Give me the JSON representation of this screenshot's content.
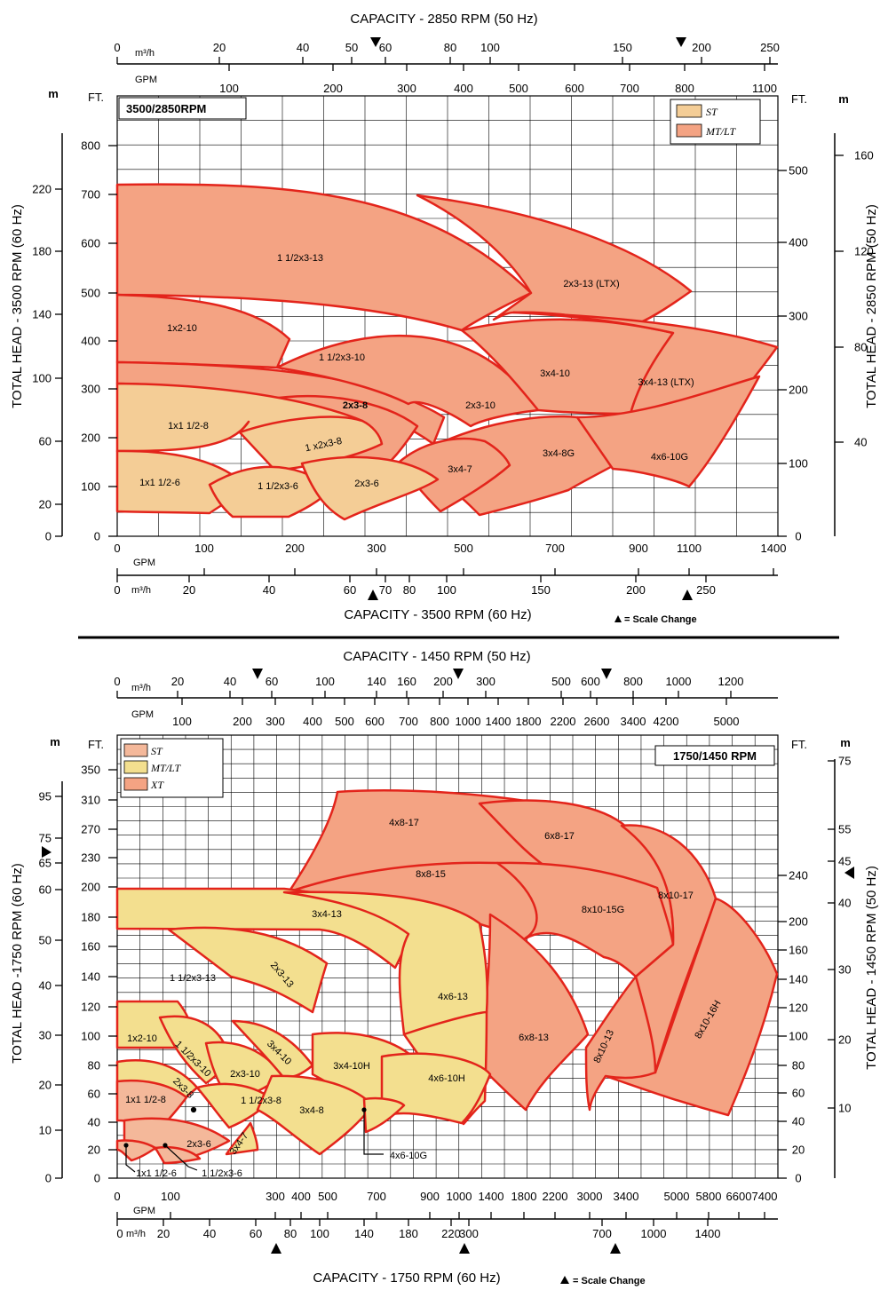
{
  "chart_data": [
    {
      "type": "area",
      "speed_label": "3500/2850RPM",
      "top_axis_title": "CAPACITY - 2850 RPM (50 Hz)",
      "top_axis_unit_m3h": "m³/h",
      "top_axis_unit_gpm": "GPM",
      "top_ticks_m3h": [
        "0",
        "20",
        "40",
        "50",
        "60",
        "80",
        "100",
        "150",
        "200",
        "250"
      ],
      "top_ticks_gpm": [
        "100",
        "200",
        "300",
        "400",
        "500",
        "600",
        "700",
        "800",
        "1100"
      ],
      "bottom_axis_title": "CAPACITY - 3500 RPM (60 Hz)",
      "bottom_ticks_gpm": [
        "0",
        "100",
        "200",
        "300",
        "500",
        "700",
        "900",
        "1100",
        "1400"
      ],
      "bottom_ticks_m3h": [
        "0",
        "20",
        "40",
        "60",
        "70",
        "80",
        "100",
        "150",
        "200",
        "250"
      ],
      "bottom_unit_gpm": "GPM",
      "bottom_unit_m3h": "m³/h",
      "left_axis_title": "TOTAL HEAD - 3500 RPM (60 Hz)",
      "left_units": {
        "m": "m",
        "ft": "FT."
      },
      "left_ticks_ft": [
        "0",
        "100",
        "200",
        "300",
        "400",
        "500",
        "600",
        "700",
        "800"
      ],
      "left_ticks_m": [
        "0",
        "20",
        "60",
        "100",
        "140",
        "180",
        "220"
      ],
      "right_axis_title": "TOTAL HEAD - 2850 RPM (50 Hz)",
      "right_units": {
        "ft": "FT.",
        "m": "m"
      },
      "right_ticks_ft": [
        "0",
        "100",
        "200",
        "300",
        "400",
        "500"
      ],
      "right_ticks_m": [
        "40",
        "80",
        "120",
        "160"
      ],
      "scale_change_note": "= Scale Change",
      "legend": [
        {
          "label": "ST",
          "color": "#f4cd96"
        },
        {
          "label": "MT/LT",
          "color": "#f4a383"
        }
      ],
      "regions": [
        {
          "label": "1 1/2x3-13",
          "group": "MT/LT",
          "gpm_min": 0,
          "gpm_max": 470,
          "head_ft_max": 720
        },
        {
          "label": "2x3-13 (LTX)",
          "group": "MT/LT",
          "gpm_min": 470,
          "gpm_max": 1000,
          "head_ft_max": 560
        },
        {
          "label": "1x2-10",
          "group": "MT/LT",
          "gpm_min": 0,
          "gpm_max": 190,
          "head_ft_max": 500
        },
        {
          "label": "1 1/2x3-10",
          "group": "MT/LT",
          "gpm_min": 0,
          "gpm_max": 360,
          "head_ft_max": 410
        },
        {
          "label": "2x3-10",
          "group": "MT/LT",
          "gpm_min": 220,
          "gpm_max": 690,
          "head_ft_max": 420
        },
        {
          "label": "3x4-10",
          "group": "MT/LT",
          "gpm_min": 420,
          "gpm_max": 980,
          "head_ft_max": 440
        },
        {
          "label": "3x4-13 (LTX)",
          "group": "MT/LT",
          "gpm_min": 820,
          "gpm_max": 1400,
          "head_ft_max": 390
        },
        {
          "label": "2x3-8",
          "group": "MT/LT",
          "gpm_min": 100,
          "gpm_max": 460,
          "head_ft_max": 330
        },
        {
          "label": "1x1 1/2-8",
          "group": "ST",
          "gpm_min": 0,
          "gpm_max": 240,
          "head_ft_max": 300
        },
        {
          "label": "1 x2x3-8",
          "group": "ST",
          "gpm_min": 170,
          "gpm_max": 330,
          "head_ft_max": 260
        },
        {
          "label": "3x4-8G",
          "group": "MT/LT",
          "gpm_min": 450,
          "gpm_max": 920,
          "head_ft_max": 230
        },
        {
          "label": "4x6-10G",
          "group": "MT/LT",
          "gpm_min": 830,
          "gpm_max": 1400,
          "head_ft_max": 230
        },
        {
          "label": "3x4-7",
          "group": "MT/LT",
          "gpm_min": 330,
          "gpm_max": 590,
          "head_ft_max": 180
        },
        {
          "label": "1x1 1/2-6",
          "group": "ST",
          "gpm_min": 0,
          "gpm_max": 200,
          "head_ft_max": 170
        },
        {
          "label": "1 1/2x3-6",
          "group": "ST",
          "gpm_min": 110,
          "gpm_max": 310,
          "head_ft_max": 130
        },
        {
          "label": "2x3-6",
          "group": "ST",
          "gpm_min": 230,
          "gpm_max": 450,
          "head_ft_max": 140
        }
      ]
    },
    {
      "type": "area",
      "speed_label": "1750/1450 RPM",
      "top_axis_title": "CAPACITY - 1450 RPM (50 Hz)",
      "top_axis_unit_m3h": "m³/h",
      "top_axis_unit_gpm": "GPM",
      "top_ticks_m3h": [
        "0",
        "20",
        "40",
        "60",
        "100",
        "140",
        "160",
        "200",
        "300",
        "500",
        "600",
        "800",
        "1000",
        "1200"
      ],
      "top_ticks_gpm": [
        "100",
        "200",
        "300",
        "400",
        "500",
        "600",
        "700",
        "800",
        "1000",
        "1400",
        "1800",
        "2200",
        "2600",
        "3400",
        "4200",
        "5000"
      ],
      "bottom_axis_title": "CAPACITY - 1750 RPM (60 Hz)",
      "bottom_ticks_gpm": [
        "0",
        "100",
        "300",
        "400",
        "500",
        "700",
        "900",
        "1000",
        "1400",
        "1800",
        "2200",
        "3000",
        "3400",
        "5000",
        "5800",
        "6600",
        "7400"
      ],
      "bottom_ticks_m3h": [
        "0",
        "20",
        "40",
        "60",
        "80",
        "100",
        "140",
        "180",
        "220",
        "300",
        "700",
        "1000",
        "1400"
      ],
      "bottom_unit_gpm": "GPM",
      "bottom_unit_m3h": "m³/h",
      "left_axis_title": "TOTAL HEAD -1750 RPM (60 Hz)",
      "left_units": {
        "m": "m",
        "ft": "FT."
      },
      "left_ticks_ft": [
        "0",
        "20",
        "40",
        "60",
        "80",
        "100",
        "120",
        "140",
        "160",
        "180",
        "200",
        "230",
        "270",
        "310",
        "350"
      ],
      "left_ticks_m": [
        "0",
        "10",
        "20",
        "30",
        "40",
        "50",
        "60",
        "65",
        "75",
        "95"
      ],
      "right_axis_title": "TOTAL HEAD - 1450 RPM (50 Hz)",
      "right_units": {
        "ft": "FT.",
        "m": "m"
      },
      "right_ticks_ft": [
        "0",
        "20",
        "40",
        "60",
        "80",
        "100",
        "120",
        "140",
        "160",
        "200",
        "240"
      ],
      "right_ticks_m": [
        "10",
        "20",
        "30",
        "40",
        "45",
        "55",
        "75"
      ],
      "scale_change_note": "= Scale Change",
      "legend": [
        {
          "label": "ST",
          "color": "#f4b89a"
        },
        {
          "label": "MT/LT",
          "color": "#f3df8f"
        },
        {
          "label": "XT",
          "color": "#f4a383"
        }
      ],
      "regions": [
        {
          "label": "4x8-17",
          "group": "XT",
          "gpm_min": 850,
          "gpm_max": 1600,
          "head_ft_max": 220
        },
        {
          "label": "6x8-17",
          "group": "XT",
          "gpm_min": 1400,
          "gpm_max": 3000,
          "head_ft_max": 220
        },
        {
          "label": "8x8-15",
          "group": "XT",
          "gpm_min": 900,
          "gpm_max": 2000,
          "head_ft_max": 170
        },
        {
          "label": "8x10-15G",
          "group": "XT",
          "gpm_min": 1800,
          "gpm_max": 3400,
          "head_ft_max": 150
        },
        {
          "label": "8x10-17",
          "group": "XT",
          "gpm_min": 3000,
          "gpm_max": 5000,
          "head_ft_max": 200
        },
        {
          "label": "8x10-16H",
          "group": "XT",
          "gpm_min": 3000,
          "gpm_max": 7400,
          "head_ft_max": 130
        },
        {
          "label": "8x10-13",
          "group": "XT",
          "gpm_min": 2200,
          "gpm_max": 3400,
          "head_ft_max": 90
        },
        {
          "label": "6x8-13",
          "group": "XT",
          "gpm_min": 1400,
          "gpm_max": 2300,
          "head_ft_max": 100
        },
        {
          "label": "3x4-13",
          "group": "MT/LT",
          "gpm_min": 300,
          "gpm_max": 1000,
          "head_ft_max": 170
        },
        {
          "label": "1 1/2x3-13",
          "group": "MT/LT",
          "gpm_min": 0,
          "gpm_max": 500,
          "head_ft_max": 200
        },
        {
          "label": "2x3-13",
          "group": "MT/LT",
          "gpm_min": 300,
          "gpm_max": 500,
          "head_ft_max": 160
        },
        {
          "label": "4x6-13",
          "group": "MT/LT",
          "gpm_min": 700,
          "gpm_max": 1400,
          "head_ft_max": 130
        },
        {
          "label": "1x2-10",
          "group": "MT/LT",
          "gpm_min": 0,
          "gpm_max": 150,
          "head_ft_max": 110
        },
        {
          "label": "1 1/2x3-10",
          "group": "MT/LT",
          "gpm_min": 100,
          "gpm_max": 300,
          "head_ft_max": 90
        },
        {
          "label": "2x3-10",
          "group": "MT/LT",
          "gpm_min": 200,
          "gpm_max": 400,
          "head_ft_max": 90
        },
        {
          "label": "3x4-10",
          "group": "MT/LT",
          "gpm_min": 300,
          "gpm_max": 600,
          "head_ft_max": 100
        },
        {
          "label": "3x4-10H",
          "group": "MT/LT",
          "gpm_min": 500,
          "gpm_max": 900,
          "head_ft_max": 100
        },
        {
          "label": "4x6-10H",
          "group": "MT/LT",
          "gpm_min": 700,
          "gpm_max": 1200,
          "head_ft_max": 80
        },
        {
          "label": "2x3-8",
          "group": "MT/LT",
          "gpm_min": 50,
          "gpm_max": 250,
          "head_ft_max": 70
        },
        {
          "label": "1 1/2x3-8",
          "group": "MT/LT",
          "gpm_min": 150,
          "gpm_max": 400,
          "head_ft_max": 60
        },
        {
          "label": "3x4-8",
          "group": "MT/LT",
          "gpm_min": 300,
          "gpm_max": 700,
          "head_ft_max": 70
        },
        {
          "label": "1x1 1/2-8",
          "group": "ST",
          "gpm_min": 0,
          "gpm_max": 150,
          "head_ft_max": 60
        },
        {
          "label": "2x3-6",
          "group": "ST",
          "gpm_min": 50,
          "gpm_max": 300,
          "head_ft_max": 30
        },
        {
          "label": "3x4-7",
          "group": "MT/LT",
          "gpm_min": 250,
          "gpm_max": 400,
          "head_ft_max": 40
        },
        {
          "label": "1x1 1/2-6",
          "group": "ST",
          "gpm_min": 0,
          "gpm_max": 100,
          "head_ft_max": 20
        },
        {
          "label": "1 1/2x3-6",
          "group": "ST",
          "gpm_min": 50,
          "gpm_max": 250,
          "head_ft_max": 20
        },
        {
          "label": "4x6-10G",
          "group": "MT/LT",
          "gpm_min": 600,
          "gpm_max": 1000,
          "head_ft_max": 40
        }
      ]
    }
  ]
}
